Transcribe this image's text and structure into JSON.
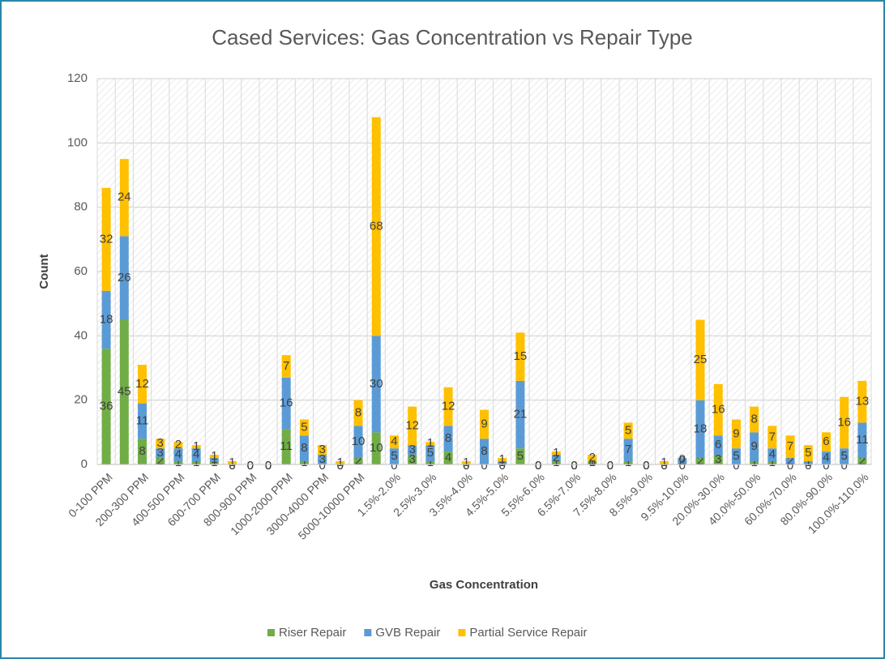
{
  "chart_data": {
    "type": "stacked-bar",
    "title": "Cased Services: Gas Concentration vs Repair Type",
    "x_label": "Gas Concentration",
    "y_label": "Count",
    "categories": [
      "0-100 PPM",
      null,
      "200-300 PPM",
      null,
      "400-500 PPM",
      null,
      "600-700 PPM",
      null,
      "800-900 PPM",
      null,
      "1000-2000 PPM",
      null,
      "3000-4000 PPM",
      null,
      "5000-10000 PPM",
      null,
      "1.5%-2.0%",
      null,
      "2.5%-3.0%",
      null,
      "3.5%-4.0%",
      null,
      "4.5%-5.0%",
      null,
      "5.5%-6.0%",
      null,
      "6.5%-7.0%",
      null,
      "7.5%-8.0%",
      null,
      "8.5%-9.0%",
      null,
      "9.5%-10.0%",
      null,
      "20.0%-30.0%",
      null,
      "40.0%-50.0%",
      null,
      "60.0%-70.0%",
      null,
      "80.0%-90.0%",
      null,
      "100.0%-110.0%"
    ],
    "series": [
      {
        "name": "Riser Repair",
        "color": "#70ad47",
        "values": [
          36,
          45,
          8,
          2,
          1,
          1,
          1,
          0,
          0,
          0,
          11,
          1,
          0,
          0,
          2,
          10,
          0,
          3,
          1,
          4,
          0,
          0,
          0,
          5,
          0,
          1,
          0,
          1,
          0,
          1,
          0,
          0,
          0,
          2,
          3,
          0,
          1,
          1,
          0,
          0,
          0,
          0,
          2
        ]
      },
      {
        "name": "GVB Repair",
        "color": "#5b9bd5",
        "values": [
          18,
          26,
          11,
          3,
          4,
          4,
          1,
          0,
          0,
          0,
          16,
          8,
          3,
          0,
          10,
          30,
          5,
          3,
          5,
          8,
          0,
          8,
          1,
          21,
          0,
          2,
          0,
          0,
          0,
          7,
          0,
          0,
          2,
          18,
          6,
          5,
          9,
          4,
          2,
          1,
          4,
          5,
          11
        ]
      },
      {
        "name": "Partial Service Repair",
        "color": "#ffc000",
        "values": [
          32,
          24,
          12,
          3,
          2,
          1,
          1,
          1,
          0,
          0,
          7,
          5,
          3,
          1,
          8,
          68,
          4,
          12,
          1,
          12,
          1,
          9,
          1,
          15,
          0,
          1,
          0,
          2,
          0,
          5,
          0,
          1,
          0,
          25,
          16,
          9,
          8,
          7,
          7,
          5,
          6,
          16,
          13
        ]
      }
    ],
    "ylim": [
      0,
      120
    ],
    "yticks": [
      0,
      20,
      40,
      60,
      80,
      100,
      120
    ],
    "grid": true,
    "legend": "bottom"
  }
}
